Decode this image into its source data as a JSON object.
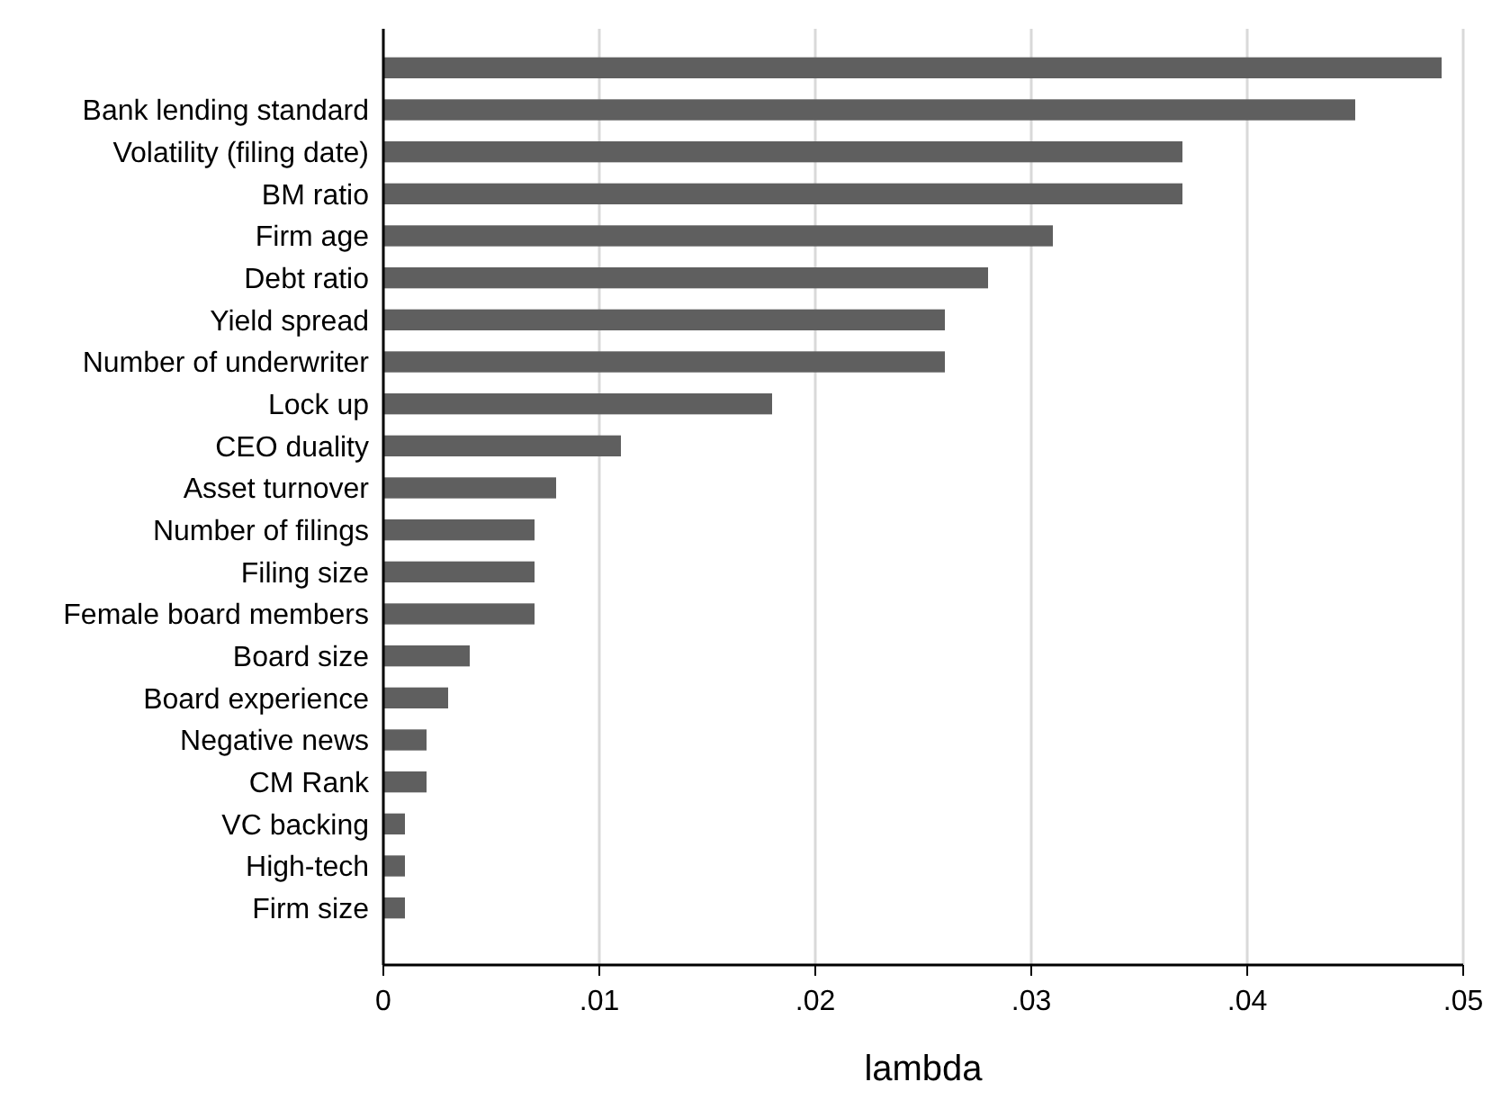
{
  "chart_data": {
    "type": "bar",
    "orientation": "horizontal",
    "xlabel": "lambda",
    "categories": [
      null,
      "Bank lending standard",
      "Volatility (filing date)",
      "BM ratio",
      "Firm age",
      "Debt ratio",
      "Yield spread",
      "Number of underwriter",
      "Lock up",
      "CEO duality",
      "Asset turnover",
      "Number of filings",
      "Filing size",
      "Female board members",
      "Board size",
      "Board experience",
      "Negative news",
      "CM Rank",
      "VC backing",
      "High-tech",
      "Firm size"
    ],
    "values": [
      0.049,
      0.045,
      0.037,
      0.037,
      0.031,
      0.028,
      0.026,
      0.026,
      0.018,
      0.011,
      0.008,
      0.007,
      0.007,
      0.007,
      0.004,
      0.003,
      0.002,
      0.002,
      0.001,
      0.001,
      0.001
    ],
    "color": "#5f5f5f",
    "xlim": [
      0,
      0.05
    ],
    "xticks": [
      0,
      {
        "value": 0.01,
        "label": ".01"
      },
      {
        "value": 0.02,
        "label": ".02"
      },
      {
        "value": 0.03,
        "label": ".03"
      },
      {
        "value": 0.04,
        "label": ".04"
      },
      {
        "value": 0.05,
        "label": ".05"
      }
    ],
    "grid": "x"
  }
}
